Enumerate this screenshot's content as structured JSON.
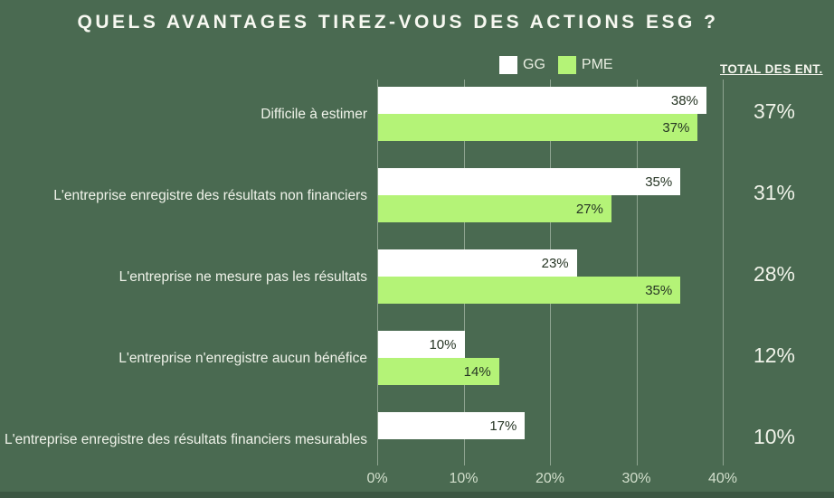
{
  "title": "QUELS AVANTAGES TIREZ-VOUS DES ACTIONS ESG ?",
  "total_column_header": "TOTAL DES ENT.",
  "legend": {
    "items": [
      {
        "label": "GG",
        "color": "#ffffff"
      },
      {
        "label": "PME",
        "color": "#b4f377"
      }
    ]
  },
  "colors": {
    "background": "#4a6a51",
    "bottom_strip": "#3c5743",
    "bar_gg": "#ffffff",
    "bar_pme": "#b4f377",
    "gridline": "rgba(235,245,230,0.42)",
    "bar_value_text": "#263524",
    "light_text": "#f0f3ea"
  },
  "chart_data": {
    "type": "bar",
    "orientation": "horizontal",
    "title": "QUELS AVANTAGES TIREZ-VOUS DES ACTIONS ESG ?",
    "categories": [
      "Difficile à estimer",
      "L'entreprise enregistre des résultats non financiers",
      "L'entreprise ne mesure pas les résultats",
      "L'entreprise n'enregistre aucun bénéfice",
      "L'entreprise enregistre des résultats financiers mesurables"
    ],
    "series": [
      {
        "name": "GG",
        "color": "#ffffff",
        "values": [
          38,
          35,
          23,
          10,
          17
        ]
      },
      {
        "name": "PME",
        "color": "#b4f377",
        "values": [
          37,
          27,
          35,
          14,
          null
        ]
      }
    ],
    "totals": {
      "label": "TOTAL DES ENT.",
      "values": [
        37,
        31,
        28,
        12,
        10
      ]
    },
    "x_ticks": [
      "0%",
      "10%",
      "20%",
      "30%",
      "40%"
    ],
    "xlim": [
      0,
      40
    ],
    "grid": "vertical",
    "legend_position": "top-right",
    "value_suffix": "%"
  }
}
